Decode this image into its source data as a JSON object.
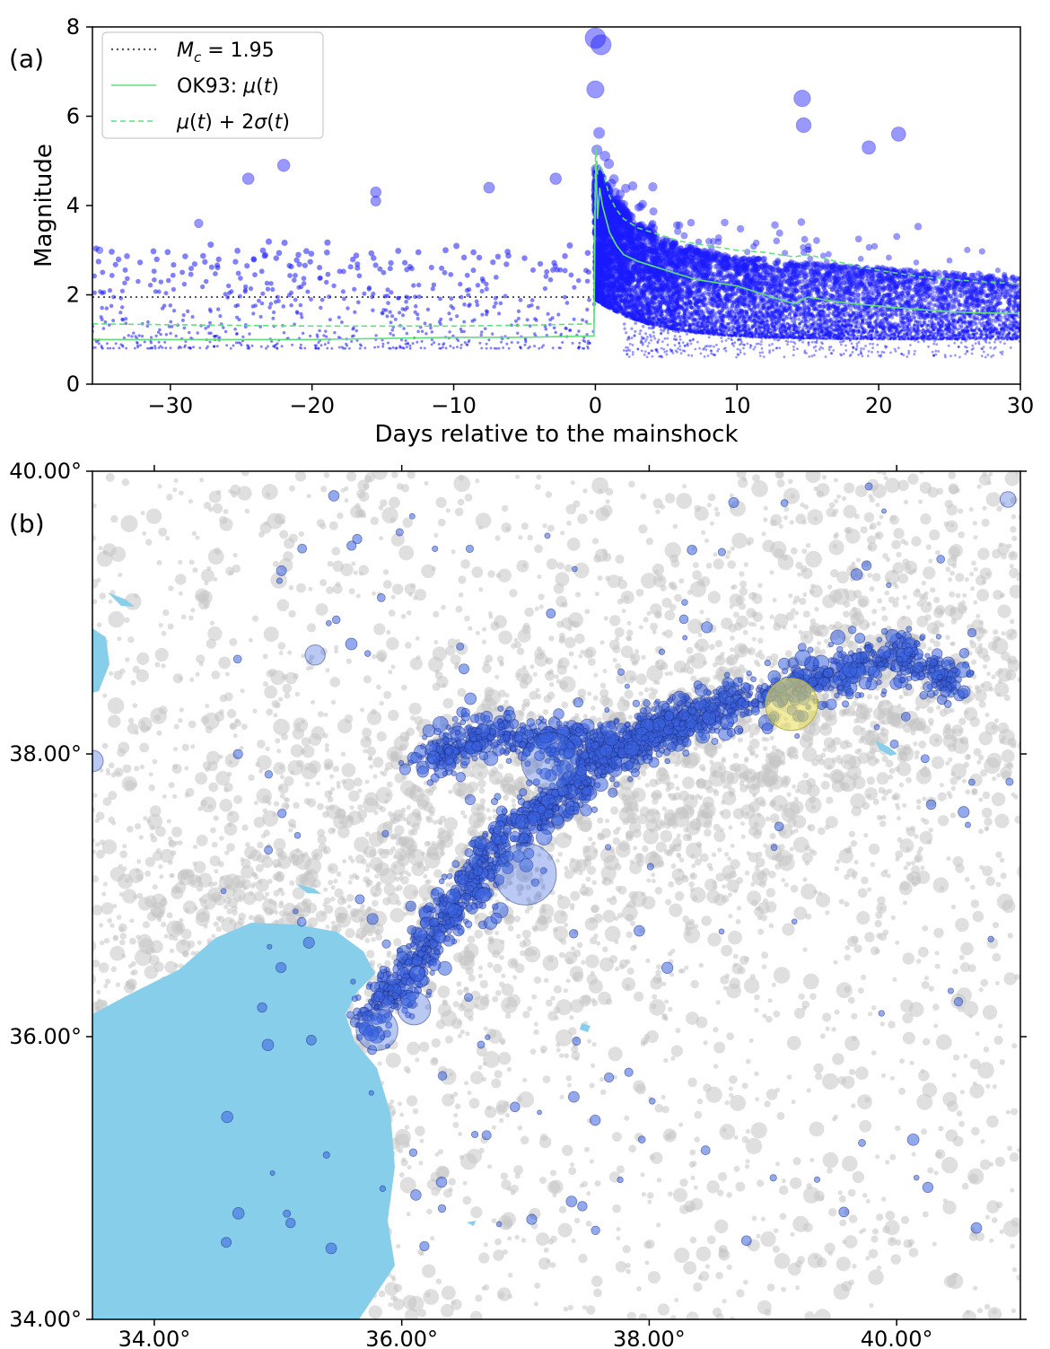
{
  "panel_a_label": "(a)",
  "panel_b_label": "(b)",
  "colors": {
    "event": "#1a1aff",
    "mu": "#5fe07a",
    "mc_line": "#555555",
    "background_event": "#c4c4c4",
    "cluster_event": "#3a63e0",
    "mainshock_highlight": "#e8e060",
    "water": "#87ceeb"
  },
  "chart_data": [
    {
      "type": "scatter",
      "xlabel": "Days relative to the mainshock",
      "ylabel": "Magnitude",
      "xlim": [
        -35.5,
        30
      ],
      "ylim": [
        0,
        8
      ],
      "xticks": [
        -30,
        -20,
        -10,
        0,
        10,
        20,
        30
      ],
      "xtick_labels": [
        "−30",
        "−20",
        "−10",
        "0",
        "10",
        "20",
        "30"
      ],
      "yticks": [
        0,
        2,
        4,
        6,
        8
      ],
      "ytick_labels": [
        "0",
        "2",
        "4",
        "6",
        "8"
      ],
      "grid": false,
      "legend_position": "top-left",
      "legend": [
        {
          "label": "M_c = 1.95",
          "style": "dotted"
        },
        {
          "label": "OK93: μ(t)",
          "style": "solid"
        },
        {
          "label": "μ(t) + 2σ(t)",
          "style": "dashed"
        }
      ],
      "lines": {
        "mc": 1.95,
        "mu": {
          "x": [
            -35.5,
            -30,
            -20,
            -10,
            -5,
            -0.1,
            0,
            0.05,
            0.15,
            0.3,
            0.5,
            1,
            1.5,
            2,
            3,
            4,
            5,
            6,
            7,
            8,
            10,
            12,
            13,
            14,
            15,
            17,
            19,
            21,
            23,
            25,
            27,
            30
          ],
          "y": [
            1.0,
            1.0,
            1.0,
            1.05,
            1.05,
            1.08,
            4.4,
            5.0,
            3.7,
            4.4,
            4.0,
            3.4,
            3.1,
            2.9,
            2.75,
            2.65,
            2.55,
            2.45,
            2.35,
            2.3,
            2.2,
            2.0,
            1.9,
            1.8,
            1.95,
            1.85,
            1.78,
            1.72,
            1.67,
            1.62,
            1.6,
            1.58
          ]
        },
        "mu_2sigma": {
          "x": [
            -35.5,
            -30,
            -20,
            -10,
            -5,
            -0.1,
            0,
            0.05,
            0.15,
            0.3,
            0.5,
            1,
            1.5,
            2,
            3,
            4,
            5,
            6,
            7,
            8,
            10,
            12,
            14,
            15,
            17,
            19,
            21,
            23,
            25,
            27,
            30
          ],
          "y": [
            1.35,
            1.33,
            1.3,
            1.3,
            1.32,
            1.35,
            5.0,
            5.3,
            4.7,
            4.9,
            4.8,
            4.2,
            3.9,
            3.7,
            3.5,
            3.4,
            3.3,
            3.2,
            3.15,
            3.1,
            3.0,
            2.95,
            2.85,
            2.9,
            2.75,
            2.6,
            2.5,
            2.4,
            2.35,
            2.3,
            2.25
          ]
        }
      },
      "highlight_events": [
        {
          "x": 0.0,
          "y": 7.75
        },
        {
          "x": 0.4,
          "y": 7.6
        },
        {
          "x": 0.0,
          "y": 6.6
        },
        {
          "x": 14.6,
          "y": 6.4
        },
        {
          "x": 14.7,
          "y": 5.8
        },
        {
          "x": 21.4,
          "y": 5.6
        },
        {
          "x": 19.3,
          "y": 5.3
        },
        {
          "x": -22.0,
          "y": 4.9
        },
        {
          "x": -24.5,
          "y": 4.6
        },
        {
          "x": -15.5,
          "y": 4.3
        },
        {
          "x": -15.5,
          "y": 4.1
        },
        {
          "x": -7.5,
          "y": 4.4
        },
        {
          "x": -2.8,
          "y": 4.6
        },
        {
          "x": -28.0,
          "y": 3.6
        },
        {
          "x": -35.0,
          "y": 3.0
        }
      ],
      "pre_mainshock_event_count": 700,
      "post_mainshock_event_count": 9000
    },
    {
      "type": "scatter",
      "xlim": [
        33.5,
        41.0
      ],
      "ylim": [
        34.0,
        40.0
      ],
      "xticks": [
        34,
        36,
        38,
        40
      ],
      "xtick_labels": [
        "34.00°",
        "36.00°",
        "38.00°",
        "40.00°"
      ],
      "yticks": [
        34,
        36,
        38,
        40
      ],
      "ytick_labels": [
        "34.00°",
        "36.00°",
        "38.00°",
        "40.00°"
      ],
      "mainshock": {
        "lon": 39.15,
        "lat": 38.35
      },
      "fault_segments": [
        [
          [
            35.7,
            36.1
          ],
          [
            36.1,
            36.5
          ],
          [
            36.5,
            37.0
          ],
          [
            36.9,
            37.5
          ],
          [
            37.3,
            37.7
          ],
          [
            37.6,
            37.95
          ],
          [
            38.3,
            38.25
          ],
          [
            38.85,
            38.4
          ]
        ],
        [
          [
            36.2,
            37.95
          ],
          [
            36.6,
            38.15
          ],
          [
            37.1,
            38.1
          ],
          [
            37.7,
            38.05
          ],
          [
            38.3,
            38.25
          ]
        ],
        [
          [
            38.9,
            38.4
          ],
          [
            39.5,
            38.55
          ],
          [
            40.0,
            38.7
          ],
          [
            40.5,
            38.5
          ]
        ]
      ],
      "large_events": [
        {
          "lon": 37.0,
          "lat": 37.15,
          "mag": 7.8
        },
        {
          "lon": 37.2,
          "lat": 37.95,
          "mag": 7.5
        },
        {
          "lon": 35.8,
          "lat": 36.05,
          "mag": 6.4
        },
        {
          "lon": 36.1,
          "lat": 36.2,
          "mag": 5.8
        },
        {
          "lon": 33.5,
          "lat": 37.95,
          "mag": 5.0
        },
        {
          "lon": 35.3,
          "lat": 38.7,
          "mag": 4.9
        },
        {
          "lon": 40.9,
          "lat": 39.8,
          "mag": 4.6
        }
      ],
      "cluster_event_count": 2200,
      "background_event_count": 5000
    }
  ]
}
